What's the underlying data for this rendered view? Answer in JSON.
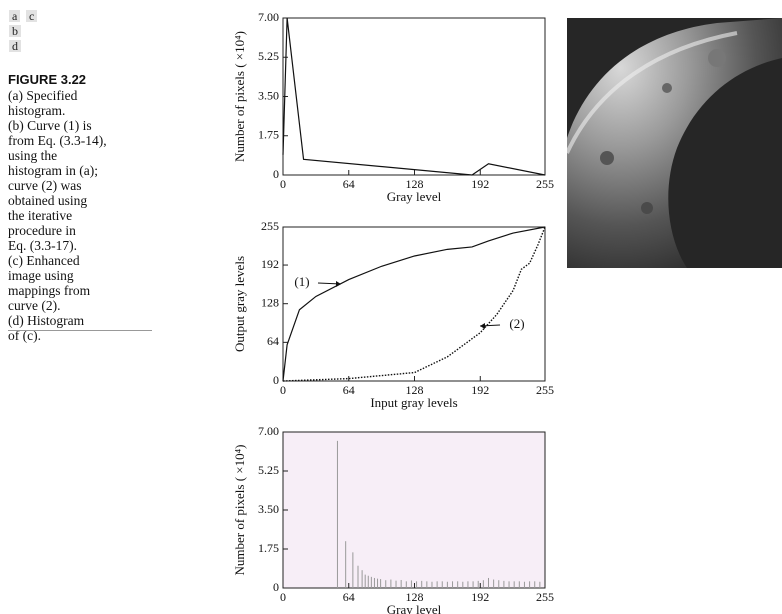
{
  "caption": {
    "panel_labels": [
      "a",
      "c",
      "b",
      "d"
    ],
    "figure": "FIGURE 3.22",
    "lines": [
      "(a) Specified",
      "histogram.",
      "(b) Curve (1) is",
      "from Eq. (3.3-14),",
      "using the",
      "histogram in (a);",
      "curve (2) was",
      "obtained using",
      "the iterative",
      "procedure in",
      "Eq. (3.3-17).",
      "(c) Enhanced",
      "image using",
      "mappings from",
      "curve (2).",
      "(d) Histogram",
      "of (c)."
    ]
  },
  "chart_data": [
    {
      "type": "line",
      "x_label": "Gray level",
      "y_label": "Number of pixels ( ×10⁴)",
      "x": [
        0,
        4,
        20,
        184,
        200,
        255
      ],
      "values": [
        0.9,
        7,
        0.7,
        0,
        0.5,
        0
      ],
      "color": "#111",
      "xlim": [
        0,
        255
      ],
      "ylim": [
        0,
        7
      ],
      "xticks": [
        0,
        64,
        128,
        192,
        255
      ],
      "yticks": [
        0,
        1.75,
        {
          "value": 3.5,
          "label": "3.50"
        },
        5.25,
        {
          "value": 7,
          "label": "7.00"
        }
      ]
    },
    {
      "type": "line",
      "x_label": "Input gray levels",
      "y_label": "Output gray levels",
      "series": [
        {
          "name": "(1)",
          "color": "#111",
          "dash": "solid",
          "x": [
            0,
            4,
            16,
            32,
            64,
            96,
            128,
            160,
            184,
            200,
            224,
            255
          ],
          "values": [
            0,
            60,
            118,
            140,
            168,
            190,
            207,
            218,
            222,
            232,
            245,
            255
          ]
        },
        {
          "name": "(2)",
          "color": "#111",
          "dash": "dotted",
          "x": [
            0,
            64,
            128,
            160,
            192,
            208,
            224,
            232,
            240,
            248,
            255
          ],
          "values": [
            0,
            4,
            14,
            40,
            80,
            110,
            150,
            185,
            195,
            225,
            255
          ]
        }
      ],
      "xlim": [
        0,
        255
      ],
      "ylim": [
        0,
        255
      ],
      "xticks": [
        0,
        64,
        128,
        192,
        255
      ],
      "yticks": [
        0,
        64,
        128,
        192,
        255
      ]
    },
    {
      "type": "bar",
      "x_label": "Gray level",
      "y_label": "Number of pixels ( ×10⁴)",
      "color": "#999",
      "plot_background": "#f7eef7",
      "x": [
        53,
        61,
        68,
        73,
        77,
        80,
        83,
        86,
        89,
        92,
        95,
        100,
        105,
        110,
        115,
        120,
        125,
        130,
        135,
        140,
        145,
        150,
        155,
        160,
        165,
        170,
        175,
        180,
        185,
        190,
        195,
        200,
        205,
        210,
        215,
        220,
        225,
        230,
        235,
        240,
        245,
        250
      ],
      "values": [
        6.6,
        2.1,
        1.6,
        1.0,
        0.8,
        0.6,
        0.55,
        0.5,
        0.45,
        0.42,
        0.4,
        0.35,
        0.38,
        0.33,
        0.36,
        0.3,
        0.34,
        0.3,
        0.32,
        0.3,
        0.28,
        0.3,
        0.3,
        0.28,
        0.3,
        0.3,
        0.28,
        0.3,
        0.3,
        0.32,
        0.35,
        0.45,
        0.38,
        0.35,
        0.32,
        0.3,
        0.3,
        0.3,
        0.28,
        0.3,
        0.3,
        0.28
      ],
      "xlim": [
        0,
        255
      ],
      "ylim": [
        0,
        7
      ],
      "xticks": [
        0,
        64,
        128,
        192,
        255
      ],
      "yticks": [
        0,
        1.75,
        {
          "value": 3.5,
          "label": "3.50"
        },
        5.25,
        {
          "value": 7,
          "label": "7.00"
        }
      ]
    }
  ]
}
